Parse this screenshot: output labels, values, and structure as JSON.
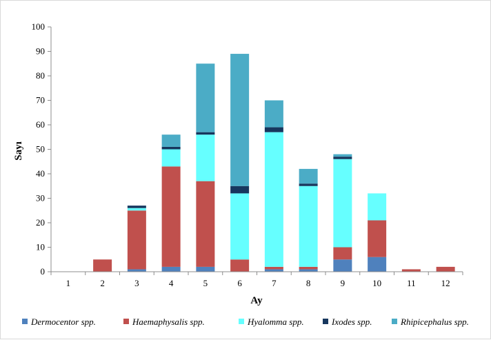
{
  "chart_data": {
    "type": "bar",
    "stacked": true,
    "xlabel": "Ay",
    "ylabel": "Sayı",
    "ylim": [
      0,
      100
    ],
    "yticks": [
      0,
      10,
      20,
      30,
      40,
      50,
      60,
      70,
      80,
      90,
      100
    ],
    "categories": [
      "1",
      "2",
      "3",
      "4",
      "5",
      "6",
      "7",
      "8",
      "9",
      "10",
      "11",
      "12"
    ],
    "grid": false,
    "legend_position": "bottom",
    "series": [
      {
        "name": "Dermocentor spp.",
        "color": "#4f81bd",
        "values": [
          0,
          0,
          1,
          2,
          2,
          0,
          1,
          1,
          5,
          6,
          0,
          0
        ]
      },
      {
        "name": "Haemaphysalis spp.",
        "color": "#c0504d",
        "values": [
          0,
          5,
          24,
          41,
          35,
          5,
          1,
          1,
          5,
          15,
          1,
          2
        ]
      },
      {
        "name": "Hyalomma spp.",
        "color": "#66ffff",
        "values": [
          0,
          0,
          1,
          7,
          19,
          27,
          55,
          33,
          36,
          11,
          0,
          0
        ]
      },
      {
        "name": "Ixodes spp.",
        "color": "#17375e",
        "values": [
          0,
          0,
          1,
          1,
          1,
          3,
          2,
          1,
          1,
          0,
          0,
          0
        ]
      },
      {
        "name": "Rhipicephalus spp.",
        "color": "#4bacc6",
        "values": [
          0,
          0,
          0,
          5,
          28,
          54,
          11,
          6,
          1,
          0,
          0,
          0
        ]
      }
    ]
  }
}
